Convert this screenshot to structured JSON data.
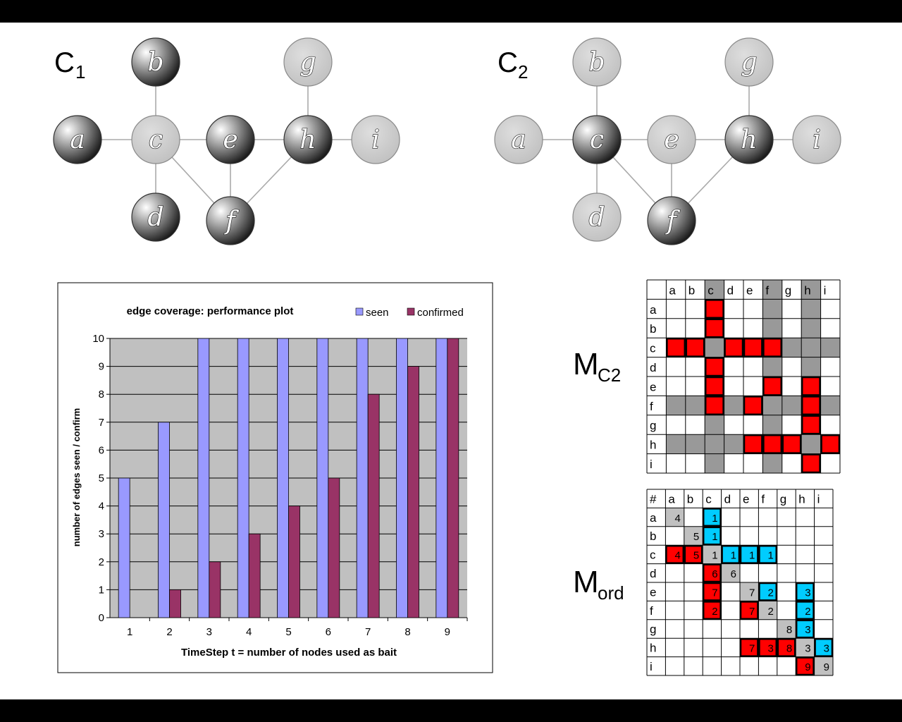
{
  "graphs": [
    {
      "title": "C",
      "subscript": "1",
      "nodes": [
        {
          "id": "a",
          "label": "a",
          "style": "dark"
        },
        {
          "id": "b",
          "label": "b",
          "style": "dark"
        },
        {
          "id": "c",
          "label": "c",
          "style": "light"
        },
        {
          "id": "d",
          "label": "d",
          "style": "dark"
        },
        {
          "id": "e",
          "label": "e",
          "style": "dark"
        },
        {
          "id": "f",
          "label": "f",
          "style": "dark"
        },
        {
          "id": "g",
          "label": "g",
          "style": "light"
        },
        {
          "id": "h",
          "label": "h",
          "style": "dark"
        },
        {
          "id": "i",
          "label": "i",
          "style": "light"
        }
      ],
      "edges": [
        [
          "a",
          "c"
        ],
        [
          "b",
          "c"
        ],
        [
          "c",
          "e"
        ],
        [
          "c",
          "d"
        ],
        [
          "c",
          "f"
        ],
        [
          "e",
          "h"
        ],
        [
          "e",
          "f"
        ],
        [
          "h",
          "g"
        ],
        [
          "h",
          "i"
        ],
        [
          "h",
          "f"
        ]
      ]
    },
    {
      "title": "C",
      "subscript": "2",
      "nodes": [
        {
          "id": "a",
          "label": "a",
          "style": "light"
        },
        {
          "id": "b",
          "label": "b",
          "style": "light"
        },
        {
          "id": "c",
          "label": "c",
          "style": "dark"
        },
        {
          "id": "d",
          "label": "d",
          "style": "light"
        },
        {
          "id": "e",
          "label": "e",
          "style": "light"
        },
        {
          "id": "f",
          "label": "f",
          "style": "dark"
        },
        {
          "id": "g",
          "label": "g",
          "style": "light"
        },
        {
          "id": "h",
          "label": "h",
          "style": "dark"
        },
        {
          "id": "i",
          "label": "i",
          "style": "light"
        }
      ],
      "edges": [
        [
          "a",
          "c"
        ],
        [
          "b",
          "c"
        ],
        [
          "c",
          "e"
        ],
        [
          "c",
          "d"
        ],
        [
          "c",
          "f"
        ],
        [
          "e",
          "h"
        ],
        [
          "e",
          "f"
        ],
        [
          "h",
          "g"
        ],
        [
          "h",
          "i"
        ],
        [
          "h",
          "f"
        ]
      ]
    }
  ],
  "chart_data": {
    "type": "bar",
    "title": "edge coverage: performance plot",
    "xlabel": "TimeStep t = number of nodes used as bait",
    "ylabel": "number of edges seen / confirm",
    "categories": [
      "1",
      "2",
      "3",
      "4",
      "5",
      "6",
      "7",
      "8",
      "9"
    ],
    "series": [
      {
        "name": "seen",
        "color": "#9999ff",
        "values": [
          5,
          7,
          10,
          10,
          10,
          10,
          10,
          10,
          10
        ]
      },
      {
        "name": "confirmed",
        "color": "#993366",
        "values": [
          0,
          1,
          2,
          3,
          4,
          5,
          8,
          9,
          10
        ]
      }
    ],
    "ylim": [
      0,
      10
    ],
    "yticks": [
      "0",
      "1",
      "2",
      "3",
      "4",
      "5",
      "6",
      "7",
      "8",
      "9",
      "10"
    ],
    "grid": true,
    "legend": "top-right",
    "plot_background": "#c0c0c0"
  },
  "matrices": {
    "colors": {
      "red": "#ff0000",
      "cyan": "#00ccff",
      "gray": "#999999",
      "lightgray": "#c0c0c0",
      "white": "#ffffff"
    },
    "mc2": {
      "label": "M",
      "subscript": "C2",
      "corner": "",
      "cols": [
        "a",
        "b",
        "c",
        "d",
        "e",
        "f",
        "g",
        "h",
        "i"
      ],
      "rows": [
        "a",
        "b",
        "c",
        "d",
        "e",
        "f",
        "g",
        "h",
        "i"
      ],
      "highlight_cols": [
        2,
        5,
        7
      ],
      "highlight_rows": [
        2,
        5,
        7
      ],
      "red_cells": [
        [
          0,
          2
        ],
        [
          1,
          2
        ],
        [
          2,
          0
        ],
        [
          2,
          1
        ],
        [
          2,
          3
        ],
        [
          2,
          4
        ],
        [
          2,
          5
        ],
        [
          3,
          2
        ],
        [
          4,
          2
        ],
        [
          4,
          5
        ],
        [
          4,
          7
        ],
        [
          5,
          2
        ],
        [
          5,
          4
        ],
        [
          5,
          7
        ],
        [
          6,
          7
        ],
        [
          7,
          4
        ],
        [
          7,
          5
        ],
        [
          7,
          6
        ],
        [
          7,
          8
        ],
        [
          8,
          7
        ]
      ]
    },
    "mord": {
      "label": "M",
      "subscript": "ord",
      "corner": "#",
      "cols": [
        "a",
        "b",
        "c",
        "d",
        "e",
        "f",
        "g",
        "h",
        "i"
      ],
      "rows": [
        "a",
        "b",
        "c",
        "d",
        "e",
        "f",
        "g",
        "h",
        "i"
      ],
      "cells": [
        {
          "r": 0,
          "c": 0,
          "v": "4",
          "color": "lightgray"
        },
        {
          "r": 0,
          "c": 2,
          "v": "1",
          "color": "cyan"
        },
        {
          "r": 1,
          "c": 1,
          "v": "5",
          "color": "lightgray"
        },
        {
          "r": 1,
          "c": 2,
          "v": "1",
          "color": "cyan"
        },
        {
          "r": 2,
          "c": 0,
          "v": "4",
          "color": "red"
        },
        {
          "r": 2,
          "c": 1,
          "v": "5",
          "color": "red"
        },
        {
          "r": 2,
          "c": 2,
          "v": "1",
          "color": "lightgray"
        },
        {
          "r": 2,
          "c": 3,
          "v": "1",
          "color": "cyan"
        },
        {
          "r": 2,
          "c": 4,
          "v": "1",
          "color": "cyan"
        },
        {
          "r": 2,
          "c": 5,
          "v": "1",
          "color": "cyan"
        },
        {
          "r": 3,
          "c": 2,
          "v": "6",
          "color": "red"
        },
        {
          "r": 3,
          "c": 3,
          "v": "6",
          "color": "lightgray"
        },
        {
          "r": 4,
          "c": 2,
          "v": "7",
          "color": "red"
        },
        {
          "r": 4,
          "c": 4,
          "v": "7",
          "color": "lightgray"
        },
        {
          "r": 4,
          "c": 5,
          "v": "2",
          "color": "cyan"
        },
        {
          "r": 4,
          "c": 7,
          "v": "3",
          "color": "cyan"
        },
        {
          "r": 5,
          "c": 2,
          "v": "2",
          "color": "red"
        },
        {
          "r": 5,
          "c": 4,
          "v": "7",
          "color": "red"
        },
        {
          "r": 5,
          "c": 5,
          "v": "2",
          "color": "lightgray"
        },
        {
          "r": 5,
          "c": 7,
          "v": "2",
          "color": "cyan"
        },
        {
          "r": 6,
          "c": 6,
          "v": "8",
          "color": "lightgray"
        },
        {
          "r": 6,
          "c": 7,
          "v": "3",
          "color": "cyan"
        },
        {
          "r": 7,
          "c": 4,
          "v": "7",
          "color": "red"
        },
        {
          "r": 7,
          "c": 5,
          "v": "3",
          "color": "red"
        },
        {
          "r": 7,
          "c": 6,
          "v": "8",
          "color": "red"
        },
        {
          "r": 7,
          "c": 7,
          "v": "3",
          "color": "lightgray"
        },
        {
          "r": 7,
          "c": 8,
          "v": "3",
          "color": "cyan"
        },
        {
          "r": 8,
          "c": 7,
          "v": "9",
          "color": "red"
        },
        {
          "r": 8,
          "c": 8,
          "v": "9",
          "color": "lightgray"
        }
      ]
    }
  }
}
